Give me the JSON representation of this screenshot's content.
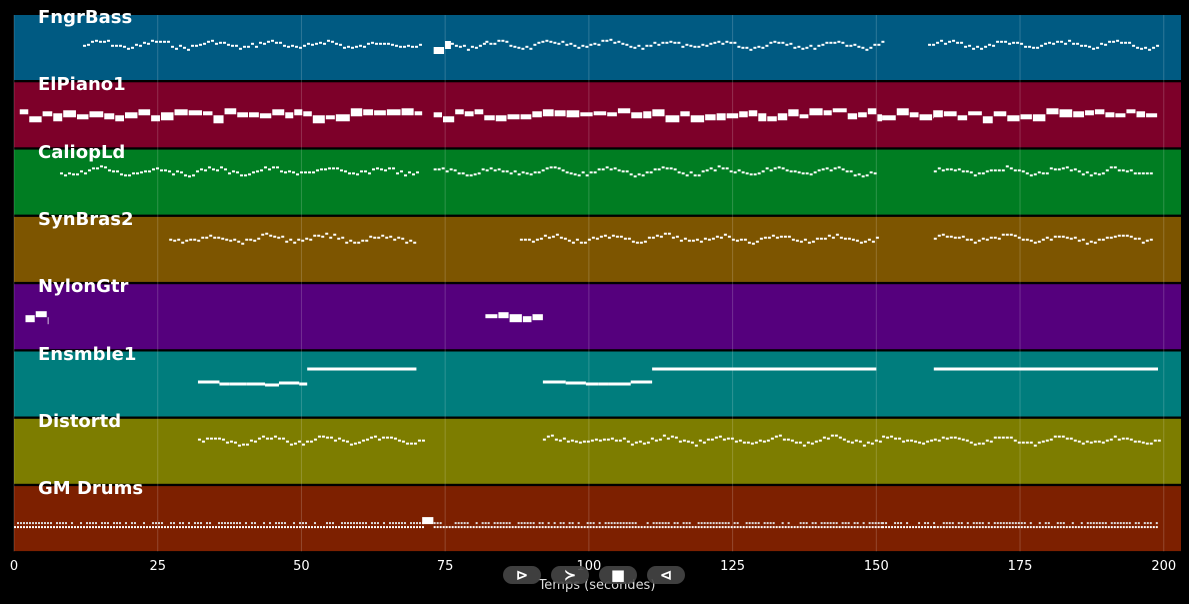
{
  "chart_data": {
    "type": "piano-roll",
    "xlabel": "Temps (secondes)",
    "xlim": [
      0,
      203
    ],
    "xticks": [
      0,
      25,
      50,
      75,
      100,
      125,
      150,
      175,
      200
    ],
    "grid": true,
    "tracks": [
      {
        "name": "FngrBass",
        "color": "#005a82",
        "segments": [
          [
            12,
            71,
            "dense"
          ],
          [
            73,
            76,
            "block"
          ],
          [
            76,
            82,
            "dense"
          ],
          [
            82,
            151,
            "dense"
          ],
          [
            159,
            199,
            "dense"
          ]
        ]
      },
      {
        "name": "ElPiano1",
        "color": "#7d0029",
        "segments": [
          [
            1,
            71,
            "block"
          ],
          [
            73,
            151,
            "block"
          ],
          [
            151,
            160,
            "block"
          ],
          [
            160,
            199,
            "block"
          ]
        ]
      },
      {
        "name": "CaliopLd",
        "color": "#007d22",
        "segments": [
          [
            8,
            70,
            "dense"
          ],
          [
            73,
            150,
            "dense"
          ],
          [
            160,
            198,
            "dense"
          ]
        ]
      },
      {
        "name": "SynBras2",
        "color": "#7d5500",
        "segments": [
          [
            27,
            70,
            "dense"
          ],
          [
            88,
            150,
            "dense"
          ],
          [
            160,
            198,
            "dense"
          ]
        ]
      },
      {
        "name": "NylonGtr",
        "color": "#55007d",
        "segments": [
          [
            2,
            6,
            "block"
          ],
          [
            82,
            92,
            "block"
          ]
        ]
      },
      {
        "name": "Ensmble1",
        "color": "#007d7d",
        "segments": [
          [
            32,
            51,
            "step"
          ],
          [
            51,
            70,
            "sustain"
          ],
          [
            92,
            111,
            "step"
          ],
          [
            111,
            150,
            "sustain"
          ],
          [
            160,
            199,
            "sustain"
          ]
        ]
      },
      {
        "name": "Distortd",
        "color": "#7d7d00",
        "segments": [
          [
            32,
            71,
            "dense"
          ],
          [
            92,
            151,
            "dense"
          ],
          [
            151,
            160,
            "dense"
          ],
          [
            160,
            199,
            "dense"
          ]
        ]
      },
      {
        "name": "GM Drums",
        "color": "#7d2000",
        "segments": [
          [
            0,
            71,
            "drums"
          ],
          [
            71,
            73,
            "block"
          ],
          [
            73,
            151,
            "drums"
          ],
          [
            151,
            160,
            "drums"
          ],
          [
            160,
            199,
            "drums"
          ]
        ]
      }
    ]
  },
  "controls": {
    "play": "⊳",
    "next": "≻",
    "stop": "■",
    "prev": "⊲"
  }
}
